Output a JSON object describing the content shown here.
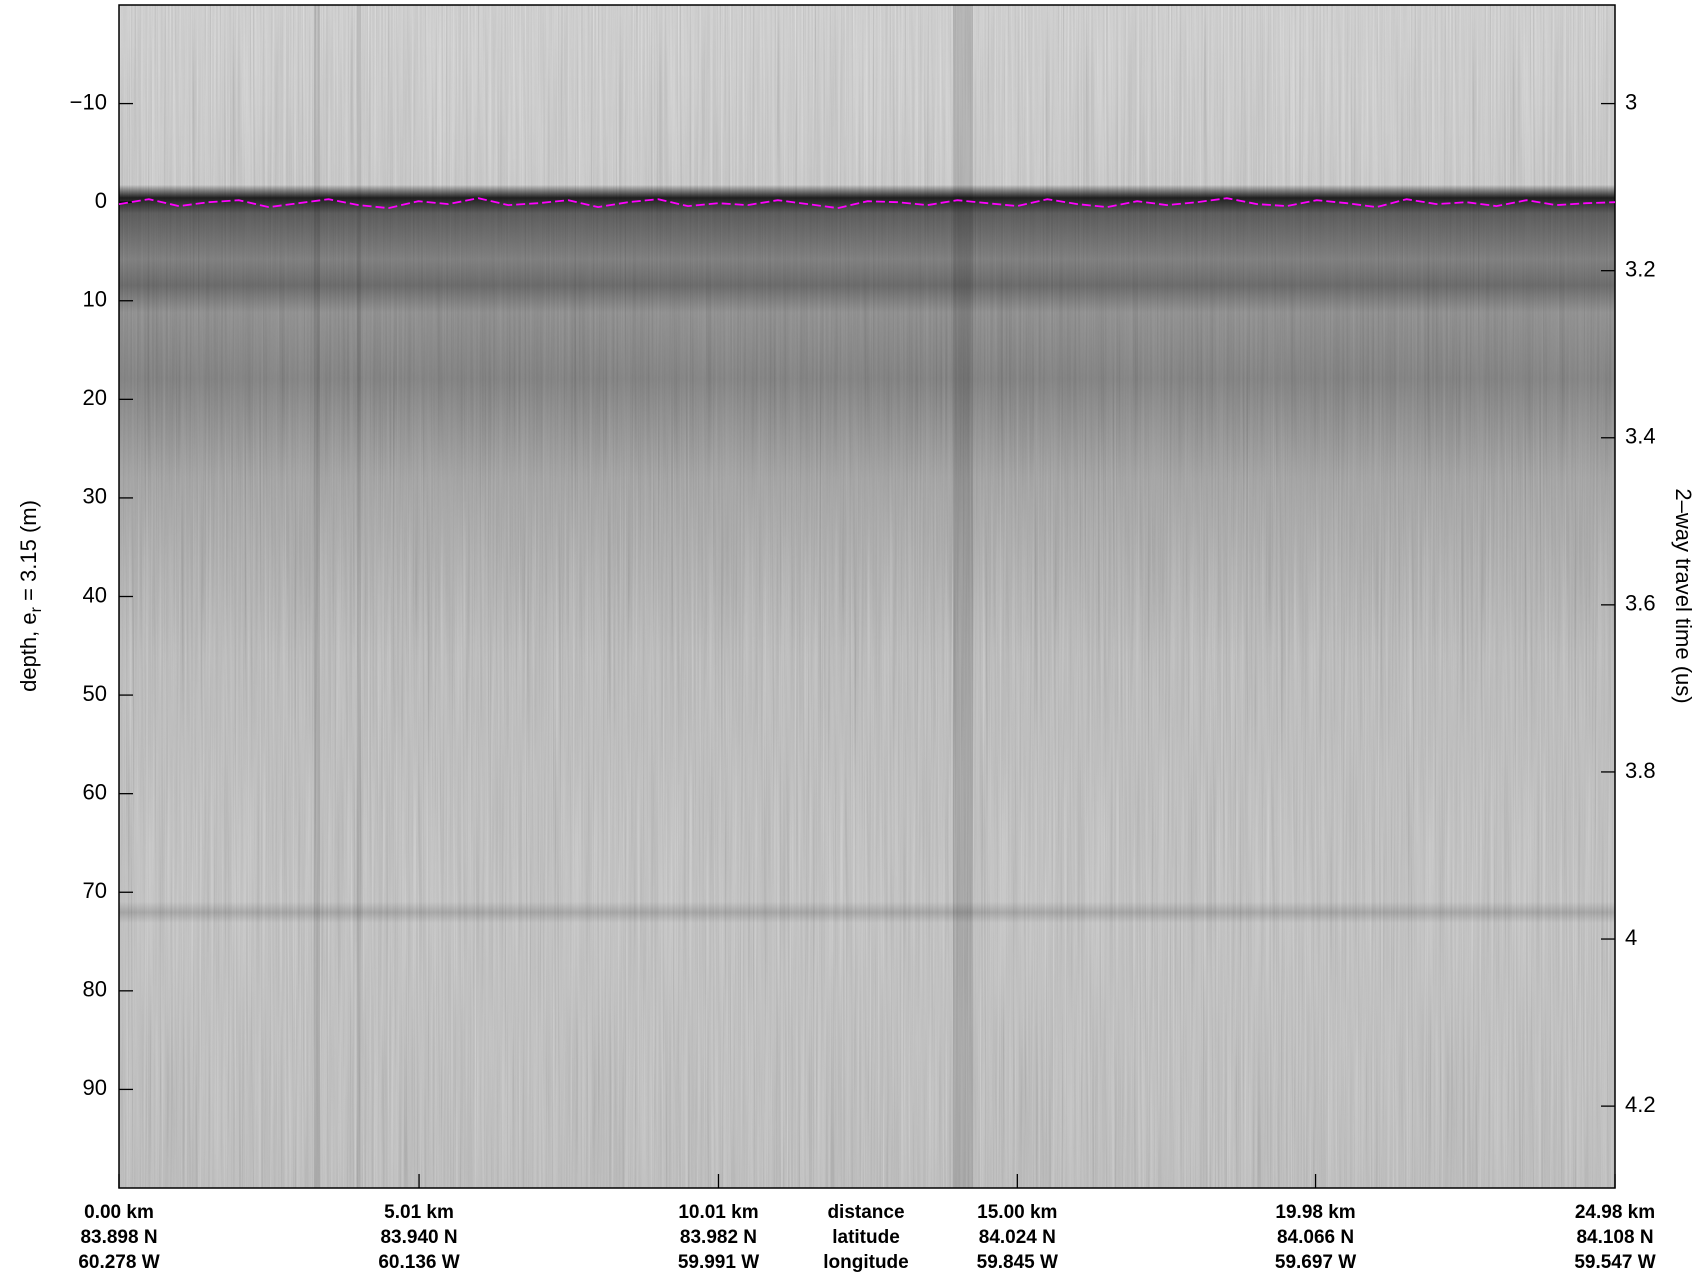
{
  "chart_data": {
    "type": "radargram",
    "y_label": "depth, e",
    "y_label_sub": "r",
    "y_label_rest": " = 3.15 (m)",
    "y2_label": "2–way travel time (us)",
    "ylim": [
      -20,
      100
    ],
    "yticks": [
      {
        "value": -10,
        "label": "−10"
      },
      0,
      10,
      20,
      30,
      40,
      50,
      60,
      70,
      80,
      90
    ],
    "y2lim": [
      2.882,
      4.298
    ],
    "y2ticks": [
      3,
      3.2,
      3.4,
      3.6,
      3.8,
      4,
      4.2
    ],
    "xlim": [
      0,
      24.98
    ],
    "xticks": [
      {
        "value": 0,
        "label": "0.00 km"
      },
      {
        "value": 5.01,
        "label": "5.01 km"
      },
      {
        "value": 10.01,
        "label": "10.01 km"
      },
      {
        "value": 15.0,
        "label": "15.00 km"
      },
      {
        "value": 19.98,
        "label": "19.98 km"
      },
      {
        "value": 24.98,
        "label": "24.98 km"
      }
    ],
    "latitudes": [
      "83.898 N",
      "83.940 N",
      "83.982 N",
      "84.024 N",
      "84.066 N",
      "84.108 N"
    ],
    "longitudes": [
      "60.278 W",
      "60.136 W",
      "59.991 W",
      "59.845 W",
      "59.697 W",
      "59.547 W"
    ],
    "row_labels": [
      "distance",
      "latitude",
      "longitude"
    ],
    "series": [
      {
        "name": "surface pick",
        "color": "#ff00ff",
        "x": [
          0,
          0.5,
          1,
          1.5,
          2,
          2.5,
          3,
          3.5,
          4,
          4.5,
          5,
          5.5,
          6,
          6.5,
          7,
          7.5,
          8,
          8.5,
          9,
          9.5,
          10,
          10.5,
          11,
          11.5,
          12,
          12.5,
          13,
          13.5,
          14,
          14.5,
          15,
          15.5,
          16,
          16.5,
          17,
          17.5,
          18,
          18.5,
          19,
          19.5,
          20,
          20.5,
          21,
          21.5,
          22,
          22.5,
          23,
          23.5,
          24,
          24.5,
          24.98
        ],
        "values": [
          0.2,
          -0.3,
          0.4,
          0,
          -0.2,
          0.5,
          0.1,
          -0.3,
          0.3,
          0.6,
          -0.1,
          0.2,
          -0.4,
          0.3,
          0.1,
          -0.2,
          0.5,
          0,
          -0.3,
          0.4,
          0.1,
          0.3,
          -0.2,
          0.2,
          0.6,
          -0.1,
          0,
          0.3,
          -0.2,
          0.1,
          0.4,
          -0.3,
          0.2,
          0.5,
          -0.1,
          0.3,
          0,
          -0.4,
          0.2,
          0.4,
          -0.2,
          0.1,
          0.5,
          -0.3,
          0.2,
          0,
          0.4,
          -0.2,
          0.3,
          0.1,
          0
        ]
      }
    ]
  }
}
